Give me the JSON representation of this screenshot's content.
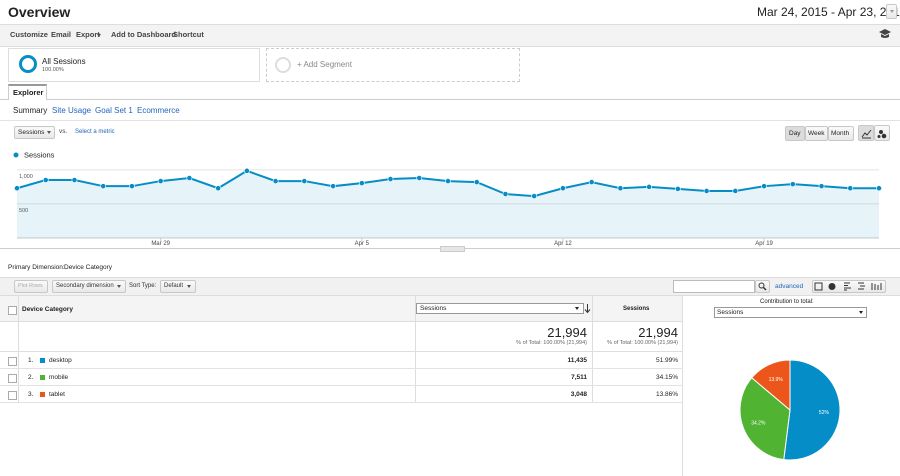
{
  "header": {
    "title": "Overview",
    "date_range": "Mar 24, 2015 - Apr 23, 2015"
  },
  "toolbar": [
    "Customize",
    "Email",
    "Export",
    "Add to Dashboard",
    "Shortcut"
  ],
  "segments": {
    "name": "All Sessions",
    "share": "100.00%",
    "add": "+ Add Segment"
  },
  "explorer": {
    "tab": "Explorer",
    "subtabs": [
      "Summary",
      "Site Usage",
      "Goal Set 1",
      "Ecommerce"
    ],
    "metric": "Sessions",
    "vs": "vs.",
    "select_metric": "Select a metric",
    "periods": [
      "Day",
      "Week",
      "Month"
    ]
  },
  "chart_data": [
    {
      "type": "area",
      "categories": [
        null,
        null,
        null,
        null,
        null,
        "Mar 29",
        null,
        null,
        null,
        null,
        null,
        null,
        "Apr 5",
        null,
        null,
        null,
        null,
        null,
        null,
        "Apr 12",
        null,
        null,
        null,
        null,
        null,
        null,
        "Apr 19",
        null,
        null,
        null,
        null
      ],
      "series": [
        {
          "name": "Sessions",
          "color": "#058dc7",
          "values": [
            730,
            850,
            850,
            760,
            760,
            835,
            880,
            730,
            985,
            835,
            835,
            760,
            805,
            865,
            880,
            835,
            820,
            645,
            615,
            730,
            820,
            730,
            750,
            720,
            690,
            690,
            760,
            790,
            760,
            730,
            730
          ]
        }
      ],
      "ylim": [
        0,
        1100
      ],
      "yticks": [
        {
          "value": 1000,
          "label": "1,000"
        },
        500
      ],
      "grid": true
    },
    {
      "type": "pie",
      "values": [
        51.99,
        34.15,
        13.86
      ],
      "value_labels": [
        "52%",
        "34.2%",
        "13.9%"
      ],
      "colors": [
        "#058dc7",
        "#50b432",
        "#ed561b"
      ]
    }
  ],
  "table": {
    "primary_label": "Primary Dimension:",
    "primary_value": "Device Category",
    "plot_rows": "Plot Rows",
    "secondary": "Secondary dimension",
    "sort_label": "Sort Type:",
    "sort_value": "Default",
    "advanced": "advanced",
    "columns": [
      "Device Category",
      "Sessions",
      "Sessions"
    ],
    "contribution_label": "Contribution to total:",
    "contribution_metric": "Sessions",
    "totals": {
      "sessions": "21,994",
      "sessions_note": "% of Total: 100.00% (21,994)",
      "share": "21,994",
      "share_note": "% of Total: 100.00% (21,994)"
    },
    "rows": [
      [
        "1.",
        "desktop",
        "11,435",
        "51.99%"
      ],
      [
        "2.",
        "mobile",
        "7,511",
        "34.15%"
      ],
      [
        "3.",
        "tablet",
        "3,048",
        "13.86%"
      ]
    ]
  }
}
